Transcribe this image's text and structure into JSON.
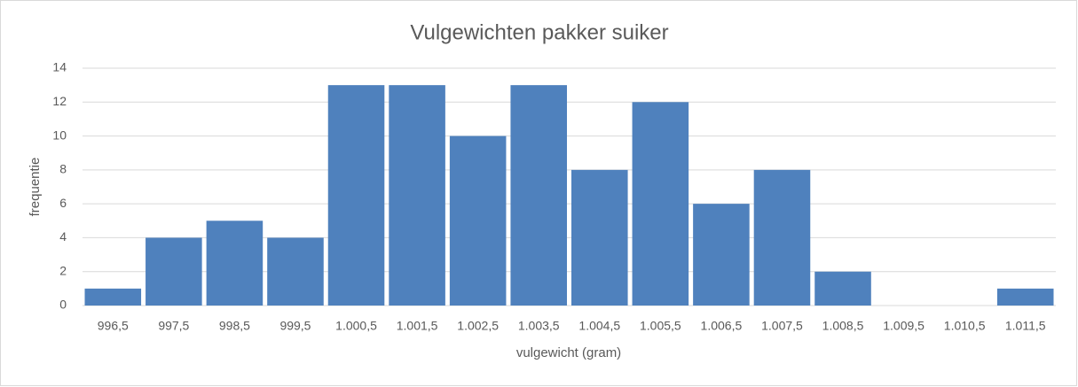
{
  "chart_data": {
    "type": "bar",
    "title": "Vulgewichten pakker suiker",
    "x_label": "vulgewicht (gram)",
    "y_label": "frequentie",
    "categories": [
      "996,5",
      "997,5",
      "998,5",
      "999,5",
      "1.000,5",
      "1.001,5",
      "1.002,5",
      "1.003,5",
      "1.004,5",
      "1.005,5",
      "1.006,5",
      "1.007,5",
      "1.008,5",
      "1.009,5",
      "1.010,5",
      "1.011,5"
    ],
    "values": [
      1,
      4,
      5,
      4,
      13,
      13,
      10,
      13,
      8,
      12,
      6,
      8,
      2,
      0,
      0,
      1
    ],
    "color": "#4f81bd",
    "ylim": [
      0,
      14
    ],
    "yticks": [
      0,
      2,
      4,
      6,
      8,
      10,
      12,
      14
    ],
    "grid": true
  }
}
